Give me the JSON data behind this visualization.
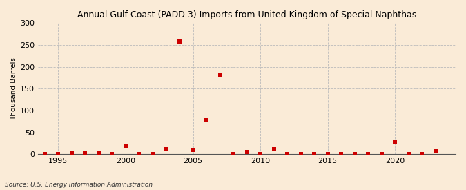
{
  "title": "Annual Gulf Coast (PADD 3) Imports from United Kingdom of Special Naphthas",
  "ylabel": "Thousand Barrels",
  "source": "Source: U.S. Energy Information Administration",
  "background_color": "#faebd7",
  "plot_background_color": "#faebd7",
  "marker_color": "#cc0000",
  "marker_size": 4,
  "marker_style": "s",
  "xlim": [
    1993.5,
    2024.5
  ],
  "ylim": [
    0,
    300
  ],
  "yticks": [
    0,
    50,
    100,
    150,
    200,
    250,
    300
  ],
  "xticks": [
    1995,
    2000,
    2005,
    2010,
    2015,
    2020
  ],
  "grid_color": "#bbbbbb",
  "years": [
    1994,
    1995,
    1996,
    1997,
    1998,
    1999,
    2000,
    2001,
    2002,
    2003,
    2004,
    2005,
    2006,
    2007,
    2008,
    2009,
    2010,
    2011,
    2012,
    2013,
    2014,
    2015,
    2016,
    2017,
    2018,
    2019,
    2020,
    2021,
    2022,
    2023
  ],
  "values": [
    0,
    1,
    2,
    2,
    2,
    0,
    19,
    0,
    0,
    11,
    258,
    9,
    77,
    180,
    0,
    5,
    0,
    12,
    0,
    0,
    0,
    0,
    0,
    0,
    0,
    0,
    28,
    0,
    0,
    6
  ]
}
